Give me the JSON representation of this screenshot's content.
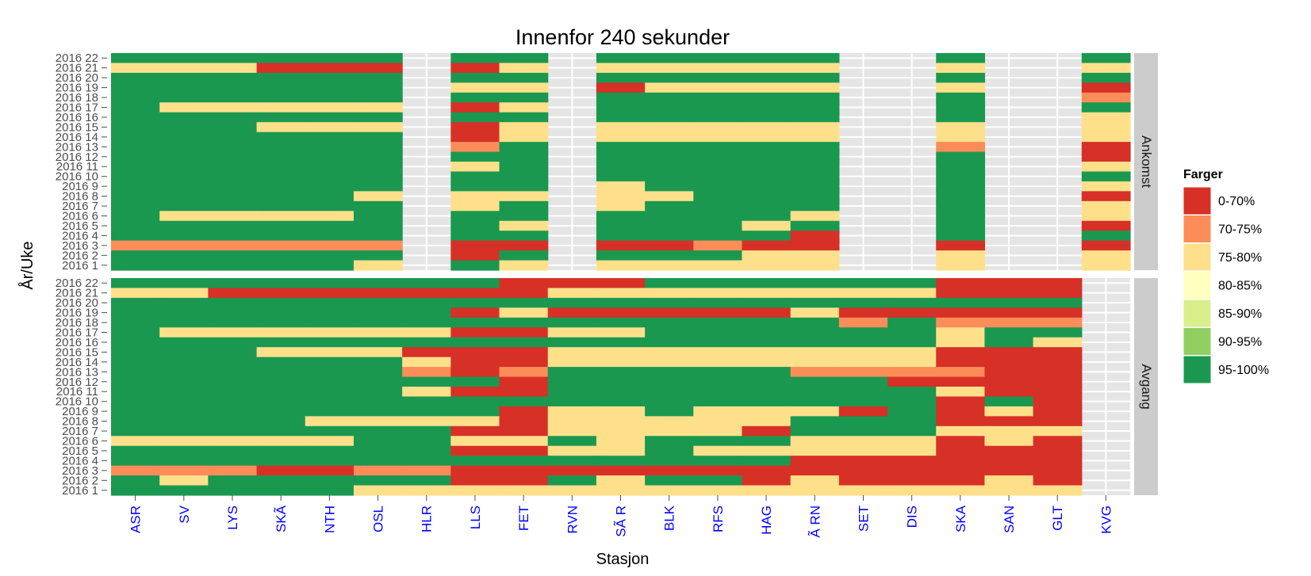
{
  "chart_data": {
    "type": "heatmap",
    "title": "Innenfor 240  sekunder",
    "xlabel": "Stasjon",
    "ylabel": "År/Uke",
    "stations": [
      "ASR",
      "SV",
      "LYS",
      "SKÃ",
      "NTH",
      "OSL",
      "HLR",
      "LLS",
      "FET",
      "RVN",
      "SÃ R",
      "BLK",
      "RFS",
      "HAG",
      "Ã RN",
      "SET",
      "DIS",
      "SKA",
      "SAN",
      "GLT",
      "KVG"
    ],
    "weeks": [
      "2016  1",
      "2016  2",
      "2016  3",
      "2016  4",
      "2016  5",
      "2016  6",
      "2016  7",
      "2016  8",
      "2016  9",
      "2016 10",
      "2016 11",
      "2016 12",
      "2016 13",
      "2016 14",
      "2016 15",
      "2016 16",
      "2016 17",
      "2016 18",
      "2016 19",
      "2016 20",
      "2016 21",
      "2016 22"
    ],
    "legend": {
      "title": "Farger",
      "position": "right",
      "items": [
        {
          "label": "0-70%",
          "color": "#d73027"
        },
        {
          "label": "70-75%",
          "color": "#fc8d59"
        },
        {
          "label": "75-80%",
          "color": "#fee08b"
        },
        {
          "label": "80-85%",
          "color": "#ffffbf"
        },
        {
          "label": "85-90%",
          "color": "#d9ef8b"
        },
        {
          "label": "90-95%",
          "color": "#91cf60"
        },
        {
          "label": "95-100%",
          "color": "#1a9850"
        }
      ]
    },
    "value_encoding": "bin index into legend.items; null = no data; weeks listed top (2016 22) to bottom (2016 1)",
    "panels": [
      {
        "label": "Ankomst",
        "rows": [
          [
            6,
            6,
            6,
            6,
            6,
            6,
            null,
            6,
            6,
            null,
            6,
            6,
            6,
            6,
            6,
            null,
            null,
            6,
            null,
            null,
            6
          ],
          [
            2,
            2,
            2,
            0,
            0,
            0,
            null,
            0,
            2,
            null,
            2,
            2,
            2,
            2,
            2,
            null,
            null,
            2,
            null,
            null,
            2
          ],
          [
            6,
            6,
            6,
            6,
            6,
            6,
            null,
            6,
            6,
            null,
            6,
            6,
            6,
            6,
            6,
            null,
            null,
            6,
            null,
            null,
            6
          ],
          [
            6,
            6,
            6,
            6,
            6,
            6,
            null,
            2,
            2,
            null,
            0,
            2,
            2,
            2,
            2,
            null,
            null,
            2,
            null,
            null,
            0
          ],
          [
            6,
            6,
            6,
            6,
            6,
            6,
            null,
            6,
            6,
            null,
            6,
            6,
            6,
            6,
            6,
            null,
            null,
            6,
            null,
            null,
            1
          ],
          [
            6,
            2,
            2,
            2,
            2,
            2,
            null,
            0,
            2,
            null,
            6,
            6,
            6,
            6,
            6,
            null,
            null,
            6,
            null,
            null,
            6
          ],
          [
            6,
            6,
            6,
            6,
            6,
            6,
            null,
            6,
            6,
            null,
            6,
            6,
            6,
            6,
            6,
            null,
            null,
            6,
            null,
            null,
            2
          ],
          [
            6,
            6,
            6,
            2,
            2,
            2,
            null,
            0,
            2,
            null,
            2,
            2,
            2,
            2,
            2,
            null,
            null,
            2,
            null,
            null,
            2
          ],
          [
            6,
            6,
            6,
            6,
            6,
            6,
            null,
            0,
            2,
            null,
            2,
            2,
            2,
            2,
            2,
            null,
            null,
            2,
            null,
            null,
            2
          ],
          [
            6,
            6,
            6,
            6,
            6,
            6,
            null,
            1,
            6,
            null,
            6,
            6,
            6,
            6,
            6,
            null,
            null,
            1,
            null,
            null,
            0
          ],
          [
            6,
            6,
            6,
            6,
            6,
            6,
            null,
            6,
            6,
            null,
            6,
            6,
            6,
            6,
            6,
            null,
            null,
            6,
            null,
            null,
            0
          ],
          [
            6,
            6,
            6,
            6,
            6,
            6,
            null,
            2,
            6,
            null,
            6,
            6,
            6,
            6,
            6,
            null,
            null,
            6,
            null,
            null,
            2
          ],
          [
            6,
            6,
            6,
            6,
            6,
            6,
            null,
            6,
            6,
            null,
            6,
            6,
            6,
            6,
            6,
            null,
            null,
            6,
            null,
            null,
            6
          ],
          [
            6,
            6,
            6,
            6,
            6,
            6,
            null,
            6,
            6,
            null,
            2,
            6,
            6,
            6,
            6,
            null,
            null,
            6,
            null,
            null,
            2
          ],
          [
            6,
            6,
            6,
            6,
            6,
            2,
            null,
            2,
            2,
            null,
            2,
            2,
            6,
            6,
            6,
            null,
            null,
            6,
            null,
            null,
            0
          ],
          [
            6,
            6,
            6,
            6,
            6,
            6,
            null,
            2,
            6,
            null,
            2,
            6,
            6,
            6,
            6,
            null,
            null,
            6,
            null,
            null,
            2
          ],
          [
            6,
            2,
            2,
            2,
            2,
            6,
            null,
            6,
            6,
            null,
            6,
            6,
            6,
            6,
            2,
            null,
            null,
            6,
            null,
            null,
            2
          ],
          [
            6,
            6,
            6,
            6,
            6,
            6,
            null,
            6,
            2,
            null,
            6,
            6,
            6,
            2,
            6,
            null,
            null,
            6,
            null,
            null,
            0
          ],
          [
            6,
            6,
            6,
            6,
            6,
            6,
            null,
            6,
            6,
            null,
            6,
            6,
            6,
            6,
            0,
            null,
            null,
            6,
            null,
            null,
            6
          ],
          [
            1,
            1,
            1,
            1,
            1,
            1,
            null,
            0,
            0,
            null,
            0,
            0,
            1,
            0,
            0,
            null,
            null,
            0,
            null,
            null,
            0
          ],
          [
            6,
            6,
            6,
            6,
            6,
            6,
            null,
            0,
            6,
            null,
            6,
            6,
            6,
            2,
            2,
            null,
            null,
            2,
            null,
            null,
            2
          ],
          [
            6,
            6,
            6,
            6,
            6,
            2,
            null,
            6,
            2,
            null,
            2,
            2,
            2,
            2,
            2,
            null,
            null,
            2,
            null,
            null,
            2
          ]
        ]
      },
      {
        "label": "Avgang",
        "rows": [
          [
            6,
            6,
            6,
            6,
            6,
            6,
            6,
            6,
            0,
            0,
            0,
            6,
            6,
            6,
            6,
            6,
            6,
            0,
            0,
            0,
            null
          ],
          [
            2,
            2,
            0,
            0,
            0,
            0,
            0,
            0,
            0,
            2,
            2,
            2,
            2,
            2,
            2,
            2,
            2,
            0,
            0,
            0,
            null
          ],
          [
            6,
            6,
            6,
            6,
            6,
            6,
            6,
            6,
            6,
            6,
            6,
            6,
            6,
            6,
            6,
            6,
            6,
            6,
            6,
            6,
            null
          ],
          [
            6,
            6,
            6,
            6,
            6,
            6,
            6,
            0,
            2,
            0,
            0,
            0,
            0,
            0,
            2,
            0,
            0,
            0,
            0,
            0,
            null
          ],
          [
            6,
            6,
            6,
            6,
            6,
            6,
            6,
            6,
            6,
            6,
            6,
            6,
            6,
            6,
            6,
            1,
            6,
            1,
            1,
            1,
            null
          ],
          [
            6,
            2,
            2,
            2,
            2,
            2,
            2,
            0,
            0,
            2,
            2,
            6,
            6,
            6,
            6,
            6,
            6,
            2,
            6,
            6,
            null
          ],
          [
            6,
            6,
            6,
            6,
            6,
            6,
            6,
            6,
            6,
            6,
            6,
            6,
            6,
            6,
            6,
            6,
            6,
            2,
            6,
            2,
            null
          ],
          [
            6,
            6,
            6,
            2,
            2,
            2,
            0,
            0,
            0,
            2,
            2,
            2,
            2,
            2,
            2,
            2,
            2,
            0,
            0,
            0,
            null
          ],
          [
            6,
            6,
            6,
            6,
            6,
            6,
            2,
            0,
            0,
            2,
            2,
            2,
            2,
            2,
            2,
            2,
            2,
            0,
            0,
            0,
            null
          ],
          [
            6,
            6,
            6,
            6,
            6,
            6,
            1,
            0,
            1,
            6,
            6,
            6,
            6,
            6,
            1,
            1,
            1,
            1,
            0,
            0,
            null
          ],
          [
            6,
            6,
            6,
            6,
            6,
            6,
            6,
            6,
            0,
            6,
            6,
            6,
            6,
            6,
            6,
            6,
            0,
            0,
            0,
            0,
            null
          ],
          [
            6,
            6,
            6,
            6,
            6,
            6,
            2,
            0,
            0,
            6,
            6,
            6,
            6,
            6,
            6,
            6,
            6,
            2,
            0,
            0,
            null
          ],
          [
            6,
            6,
            6,
            6,
            6,
            6,
            6,
            6,
            6,
            6,
            6,
            6,
            6,
            6,
            6,
            6,
            6,
            0,
            6,
            0,
            null
          ],
          [
            6,
            6,
            6,
            6,
            6,
            6,
            6,
            6,
            0,
            2,
            2,
            6,
            2,
            2,
            2,
            0,
            6,
            0,
            2,
            0,
            null
          ],
          [
            6,
            6,
            6,
            6,
            2,
            2,
            2,
            2,
            0,
            2,
            2,
            2,
            2,
            2,
            6,
            6,
            6,
            0,
            0,
            0,
            null
          ],
          [
            6,
            6,
            6,
            6,
            6,
            6,
            6,
            0,
            0,
            2,
            2,
            2,
            2,
            0,
            6,
            6,
            6,
            2,
            2,
            2,
            null
          ],
          [
            2,
            2,
            2,
            2,
            2,
            6,
            6,
            2,
            2,
            6,
            2,
            6,
            6,
            6,
            2,
            2,
            2,
            0,
            2,
            0,
            null
          ],
          [
            6,
            6,
            6,
            6,
            6,
            6,
            6,
            0,
            0,
            2,
            2,
            6,
            2,
            2,
            2,
            2,
            2,
            0,
            0,
            0,
            null
          ],
          [
            6,
            6,
            6,
            6,
            6,
            6,
            6,
            6,
            6,
            6,
            6,
            6,
            6,
            6,
            0,
            0,
            0,
            0,
            0,
            0,
            null
          ],
          [
            1,
            1,
            1,
            0,
            0,
            1,
            1,
            0,
            0,
            0,
            0,
            0,
            0,
            0,
            0,
            0,
            0,
            0,
            0,
            0,
            null
          ],
          [
            6,
            2,
            6,
            6,
            6,
            6,
            6,
            0,
            0,
            6,
            2,
            6,
            6,
            0,
            2,
            0,
            0,
            0,
            2,
            0,
            null
          ],
          [
            6,
            6,
            6,
            6,
            6,
            2,
            2,
            2,
            2,
            2,
            2,
            2,
            2,
            2,
            2,
            2,
            2,
            2,
            2,
            2,
            null
          ]
        ]
      }
    ]
  }
}
